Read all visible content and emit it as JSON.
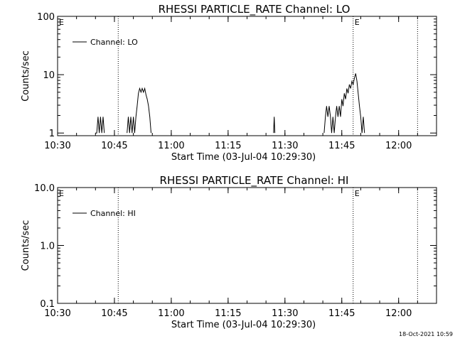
{
  "footer": {
    "timestamp": "18-Oct-2021 10:59"
  },
  "chart_data": [
    {
      "type": "line",
      "title": "RHESSI PARTICLE_RATE Channel: LO",
      "xlabel": "Start Time (03-Jul-04 10:29:30)",
      "ylabel": "Counts/sec",
      "yscale": "log",
      "xlim": [
        "10:30",
        "12:10"
      ],
      "ylim": [
        0.9,
        100
      ],
      "x_ticks": [
        "10:30",
        "10:45",
        "11:00",
        "11:15",
        "11:30",
        "11:45",
        "12:00"
      ],
      "y_ticks": [
        "1",
        "10",
        "100"
      ],
      "legend": {
        "placement": "top-left",
        "entries": [
          "Channel: LO"
        ]
      },
      "markers": [
        {
          "time": "10:46",
          "label": ""
        },
        {
          "time": "11:48",
          "label": "E"
        },
        {
          "time": "12:05",
          "label": ""
        }
      ],
      "markers_left_label": "E",
      "series": [
        {
          "name": "Channel: LO",
          "points": [
            [
              "10:40:00",
              1.0
            ],
            [
              "10:40:20",
              1.0
            ],
            [
              "10:40:40",
              1.9
            ],
            [
              "10:41:00",
              1.0
            ],
            [
              "10:41:20",
              1.9
            ],
            [
              "10:41:40",
              1.0
            ],
            [
              "10:42:00",
              1.9
            ],
            [
              "10:42:20",
              1.0
            ],
            [
              "10:44:00",
              1.0
            ],
            [
              "10:48:20",
              1.0
            ],
            [
              "10:48:40",
              1.9
            ],
            [
              "10:49:00",
              1.0
            ],
            [
              "10:49:20",
              1.9
            ],
            [
              "10:49:40",
              1.0
            ],
            [
              "10:50:00",
              1.9
            ],
            [
              "10:50:20",
              1.0
            ],
            [
              "10:50:40",
              1.9
            ],
            [
              "10:51:00",
              2.9
            ],
            [
              "10:51:20",
              4.8
            ],
            [
              "10:51:40",
              5.8
            ],
            [
              "10:52:00",
              5.0
            ],
            [
              "10:52:20",
              5.8
            ],
            [
              "10:52:40",
              5.0
            ],
            [
              "10:53:00",
              5.8
            ],
            [
              "10:53:20",
              4.5
            ],
            [
              "10:53:40",
              3.8
            ],
            [
              "10:54:00",
              2.9
            ],
            [
              "10:54:20",
              1.9
            ],
            [
              "10:54:40",
              1.0
            ],
            [
              "11:27:00",
              1.0
            ],
            [
              "11:27:10",
              1.9
            ],
            [
              "11:27:20",
              1.0
            ],
            [
              "11:40:20",
              1.0
            ],
            [
              "11:40:40",
              1.9
            ],
            [
              "11:41:00",
              2.9
            ],
            [
              "11:41:20",
              1.9
            ],
            [
              "11:41:40",
              2.9
            ],
            [
              "11:42:00",
              1.9
            ],
            [
              "11:42:20",
              1.0
            ],
            [
              "11:42:40",
              1.9
            ],
            [
              "11:43:00",
              1.0
            ],
            [
              "11:43:20",
              1.9
            ],
            [
              "11:43:40",
              2.9
            ],
            [
              "11:44:00",
              1.9
            ],
            [
              "11:44:20",
              2.9
            ],
            [
              "11:44:40",
              1.9
            ],
            [
              "11:45:00",
              3.8
            ],
            [
              "11:45:20",
              2.9
            ],
            [
              "11:45:40",
              4.8
            ],
            [
              "11:46:00",
              3.8
            ],
            [
              "11:46:20",
              5.8
            ],
            [
              "11:46:40",
              4.8
            ],
            [
              "11:47:00",
              6.8
            ],
            [
              "11:47:20",
              5.8
            ],
            [
              "11:47:40",
              7.7
            ],
            [
              "11:48:00",
              6.8
            ],
            [
              "11:48:20",
              8.7
            ],
            [
              "11:48:40",
              10.5
            ],
            [
              "11:49:00",
              7.7
            ],
            [
              "11:49:20",
              4.8
            ],
            [
              "11:49:40",
              2.9
            ],
            [
              "11:50:00",
              1.9
            ],
            [
              "11:50:20",
              1.0
            ],
            [
              "11:50:40",
              1.9
            ],
            [
              "11:51:00",
              1.0
            ]
          ]
        }
      ]
    },
    {
      "type": "line",
      "title": "RHESSI PARTICLE_RATE Channel: HI",
      "xlabel": "Start Time (03-Jul-04 10:29:30)",
      "ylabel": "Counts/sec",
      "yscale": "log",
      "xlim": [
        "10:30",
        "12:10"
      ],
      "ylim": [
        0.1,
        10
      ],
      "x_ticks": [
        "10:30",
        "10:45",
        "11:00",
        "11:15",
        "11:30",
        "11:45",
        "12:00"
      ],
      "y_ticks": [
        "0.1",
        "1.0",
        "10.0"
      ],
      "legend": {
        "placement": "top-left",
        "entries": [
          "Channel: HI"
        ]
      },
      "markers": [
        {
          "time": "10:46",
          "label": ""
        },
        {
          "time": "11:48",
          "label": "E"
        },
        {
          "time": "12:05",
          "label": ""
        }
      ],
      "markers_left_label": "E",
      "series": [
        {
          "name": "Channel: HI",
          "points": []
        }
      ]
    }
  ]
}
